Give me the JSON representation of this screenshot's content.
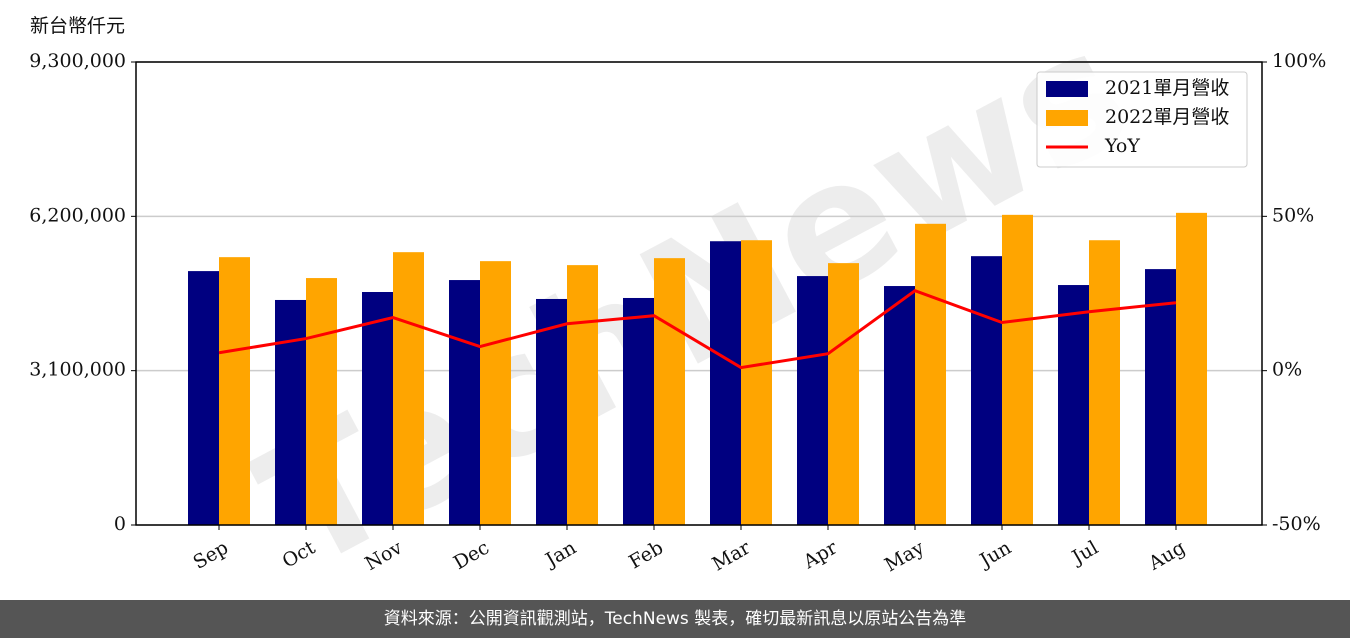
{
  "chart_data": {
    "type": "bar",
    "y_label": "新台幣仟元",
    "watermark": "TechNews",
    "categories": [
      "Sep",
      "Oct",
      "Nov",
      "Dec",
      "Jan",
      "Feb",
      "Mar",
      "Apr",
      "May",
      "Jun",
      "Jul",
      "Aug"
    ],
    "series": [
      {
        "name": "2021單月營收",
        "color": "#000080",
        "values": [
          5100000,
          4520000,
          4680000,
          4920000,
          4540000,
          4560000,
          5700000,
          5000000,
          4800000,
          5400000,
          4820000,
          5140000
        ]
      },
      {
        "name": "2022單月營收",
        "color": "#ffa500",
        "values": [
          5380000,
          4960000,
          5480000,
          5300000,
          5220000,
          5360000,
          5720000,
          5260000,
          6050000,
          6230000,
          5720000,
          6270000
        ]
      },
      {
        "name": "YoY",
        "color": "#ff0000",
        "type": "line",
        "axis": "y2",
        "values": [
          5.8,
          10.4,
          17.2,
          7.8,
          15.2,
          17.8,
          1.0,
          5.5,
          25.9,
          15.6,
          19.1,
          22.0
        ]
      }
    ],
    "ylim": [
      0,
      9300000
    ],
    "yticks": [
      0,
      {
        "value": 3100000,
        "label": "3,100,000"
      },
      {
        "value": 6200000,
        "label": "6,200,000"
      },
      {
        "value": 9300000,
        "label": "9,300,000"
      }
    ],
    "y2lim": [
      -50,
      100
    ],
    "y2ticks": [
      {
        "value": -50,
        "label": "-50%"
      },
      {
        "value": 0,
        "label": "0%"
      },
      {
        "value": 50,
        "label": "50%"
      },
      {
        "value": 100,
        "label": "100%"
      }
    ],
    "grid": true,
    "legend": "upper right",
    "footer": "資料來源：公開資訊觀測站，TechNews 製表，確切最新訊息以原站公告為準"
  }
}
